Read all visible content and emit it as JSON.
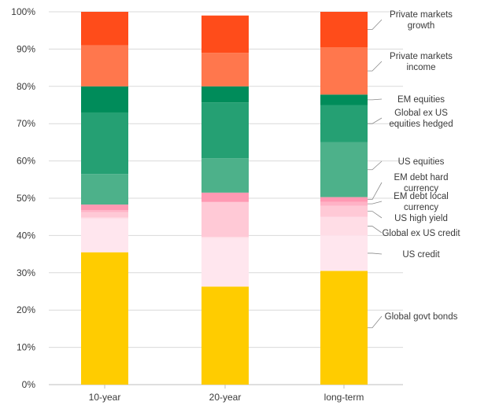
{
  "chart_data": {
    "type": "bar",
    "stacked": true,
    "categories": [
      "10-year",
      "20-year",
      "long-term"
    ],
    "ylim": [
      0,
      100
    ],
    "yticks": [
      "0%",
      "10%",
      "20%",
      "30%",
      "40%",
      "50%",
      "60%",
      "70%",
      "80%",
      "90%",
      "100%"
    ],
    "grid": true,
    "legend_placement": "right",
    "series": [
      {
        "name": "Global govt bonds",
        "color": "#FFCC00",
        "values": [
          35.5,
          26.3,
          30.5
        ]
      },
      {
        "name": "US credit",
        "color": "#FFE6EE",
        "values": [
          9.0,
          13.0,
          9.5
        ]
      },
      {
        "name": "Global ex US credit",
        "color": "#FFDDE6",
        "values": [
          0.3,
          0.3,
          5.0
        ]
      },
      {
        "name": "US high yield",
        "color": "#FFC9D6",
        "values": [
          1.5,
          9.3,
          3.0
        ]
      },
      {
        "name": "EM debt local currency",
        "color": "#FFB3C6",
        "values": [
          0.5,
          0.1,
          1.0
        ]
      },
      {
        "name": "EM debt hard currency",
        "color": "#FF99B3",
        "values": [
          1.5,
          2.5,
          1.3
        ]
      },
      {
        "name": "US equities",
        "color": "#4DB18A",
        "values": [
          8.2,
          9.2,
          14.7
        ]
      },
      {
        "name": "Global ex US equities hedged",
        "color": "#25A073",
        "values": [
          16.5,
          15.0,
          10.0
        ]
      },
      {
        "name": "EM equities",
        "color": "#008C5A",
        "values": [
          7.0,
          4.3,
          2.8
        ]
      },
      {
        "name": "Private markets income",
        "color": "#FF774D",
        "values": [
          11.0,
          9.0,
          12.7
        ]
      },
      {
        "name": "Private markets growth",
        "color": "#FF4C1A",
        "values": [
          9.0,
          10.0,
          9.5
        ]
      }
    ],
    "legend_lines": [
      [
        "Private markets",
        "growth"
      ],
      [
        "Private markets",
        "income"
      ],
      [
        "EM equities"
      ],
      [
        "Global ex US",
        "equities hedged"
      ],
      [
        "US equities"
      ],
      [
        "EM debt hard",
        "currency"
      ],
      [
        "EM debt local",
        "currency"
      ],
      [
        "US high yield"
      ],
      [
        "Global ex US credit"
      ],
      [
        "US credit"
      ],
      [
        "Global govt bonds"
      ]
    ]
  }
}
